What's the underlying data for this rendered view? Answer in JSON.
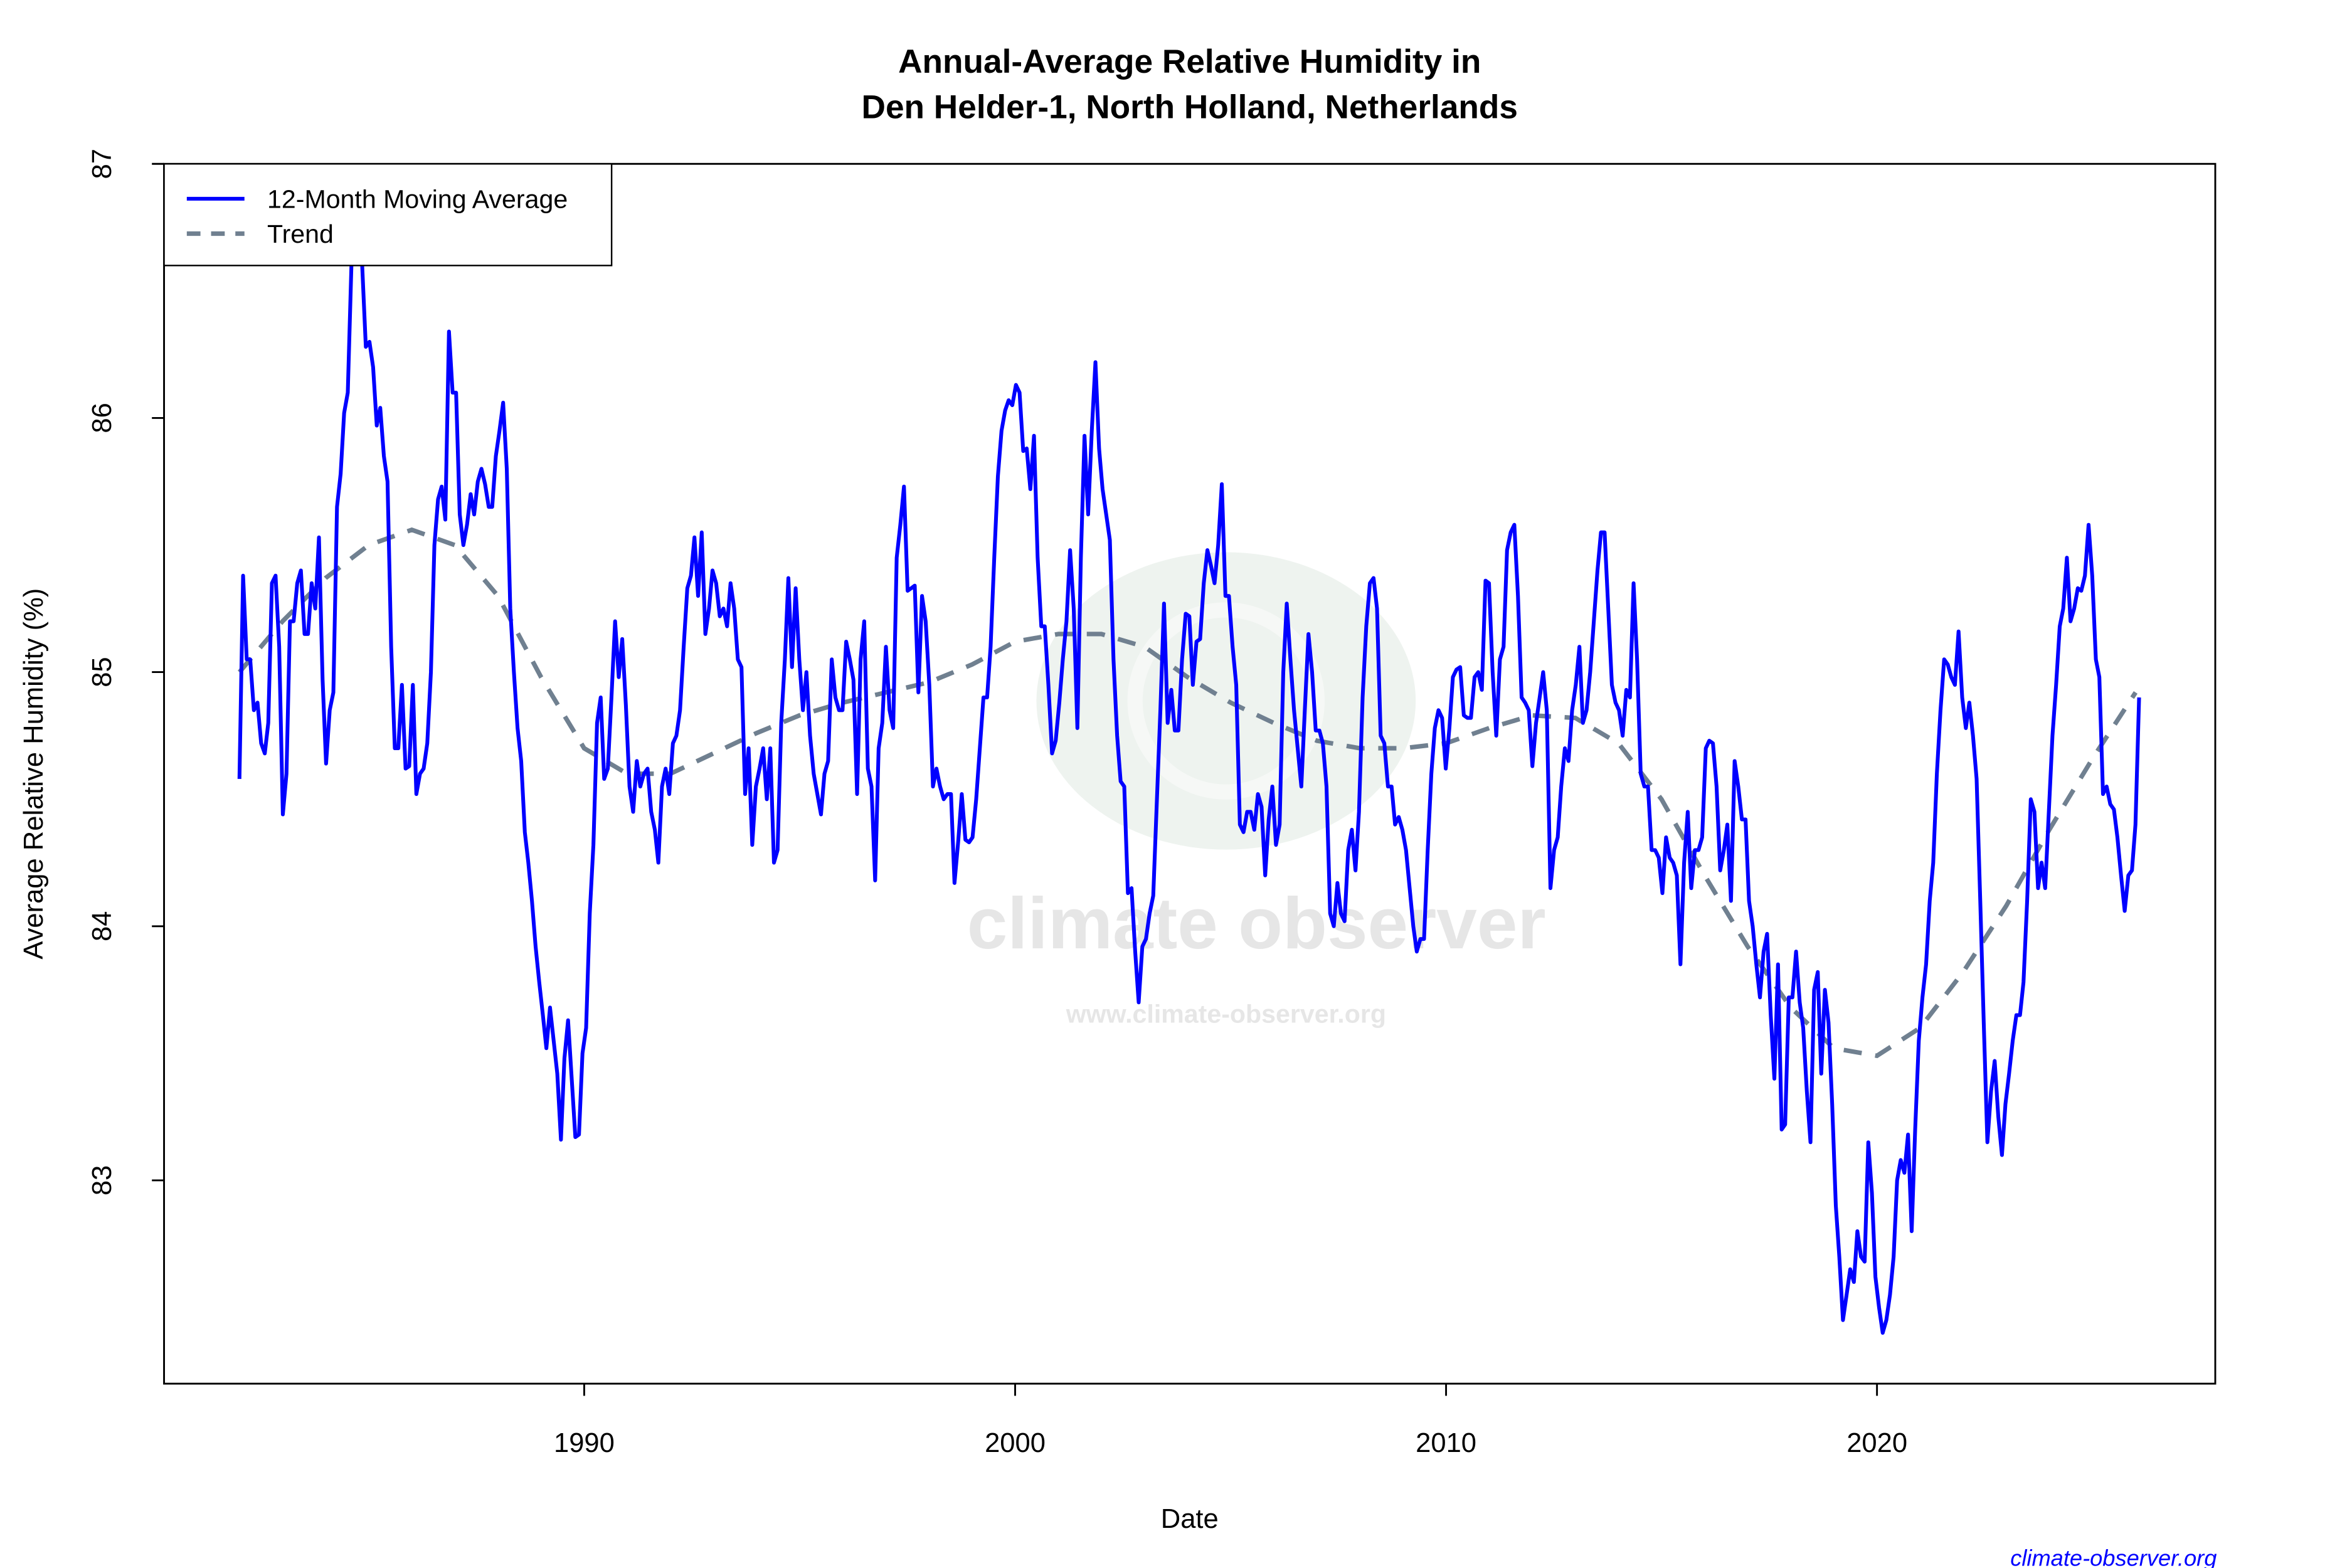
{
  "chart_data": {
    "type": "line",
    "title": "Annual-Average Relative Humidity in",
    "subtitle": "Den Helder-1, North Holland, Netherlands",
    "xlabel": "Date",
    "ylabel": "Average Relative Humidity (%)",
    "xlim": [
      1980.25,
      2027.85
    ],
    "ylim": [
      82.2,
      87.0
    ],
    "x_ticks": [
      "1990",
      "2000",
      "2010",
      "2020"
    ],
    "y_ticks": [
      "83",
      "84",
      "85",
      "86",
      "87"
    ],
    "grid": false,
    "legend_placement": "top-left",
    "series": [
      {
        "name": "12-Month Moving Average",
        "color": "#0000ff",
        "style": "solid",
        "date_range": [
          "1982-01",
          "2026-02"
        ],
        "values": [
          84.58,
          85.38,
          85.05,
          85.05,
          84.85,
          84.88,
          84.72,
          84.68,
          84.8,
          85.35,
          85.38,
          85.1,
          84.44,
          84.6,
          85.2,
          85.2,
          85.35,
          85.4,
          85.15,
          85.15,
          85.35,
          85.25,
          85.53,
          84.97,
          84.64,
          84.85,
          84.92,
          85.65,
          85.78,
          86.02,
          86.1,
          86.6,
          87.1,
          87.1,
          86.6,
          86.28,
          86.3,
          86.2,
          85.97,
          86.04,
          85.85,
          85.75,
          85.1,
          84.7,
          84.7,
          84.95,
          84.62,
          84.63,
          84.95,
          84.52,
          84.6,
          84.62,
          84.72,
          85.0,
          85.5,
          85.68,
          85.73,
          85.6,
          86.34,
          86.1,
          86.1,
          85.62,
          85.5,
          85.58,
          85.7,
          85.62,
          85.75,
          85.8,
          85.74,
          85.65,
          85.65,
          85.85,
          85.95,
          86.06,
          85.8,
          85.25,
          85.0,
          84.78,
          84.65,
          84.37,
          84.25,
          84.1,
          83.92,
          83.78,
          83.65,
          83.52,
          83.68,
          83.55,
          83.42,
          83.16,
          83.48,
          83.63,
          83.4,
          83.17,
          83.18,
          83.5,
          83.6,
          84.05,
          84.32,
          84.8,
          84.9,
          84.58,
          84.62,
          84.9,
          85.2,
          84.98,
          85.13,
          84.87,
          84.55,
          84.45,
          84.65,
          84.55,
          84.6,
          84.62,
          84.45,
          84.38,
          84.25,
          84.55,
          84.62,
          84.52,
          84.72,
          84.75,
          84.85,
          85.1,
          85.33,
          85.38,
          85.53,
          85.3,
          85.55,
          85.15,
          85.25,
          85.4,
          85.35,
          85.22,
          85.25,
          85.18,
          85.35,
          85.25,
          85.05,
          85.02,
          84.52,
          84.7,
          84.32,
          84.55,
          84.62,
          84.7,
          84.5,
          84.7,
          84.25,
          84.3,
          84.8,
          85.05,
          85.37,
          85.02,
          85.33,
          85.05,
          84.85,
          85.0,
          84.75,
          84.6,
          84.52,
          84.44,
          84.6,
          84.65,
          85.05,
          84.9,
          84.85,
          84.85,
          85.12,
          85.05,
          84.97,
          84.52,
          85.05,
          85.2,
          84.62,
          84.55,
          84.18,
          84.7,
          84.8,
          85.1,
          84.85,
          84.78,
          85.45,
          85.58,
          85.73,
          85.32,
          85.33,
          85.34,
          84.92,
          85.3,
          85.2,
          84.95,
          84.55,
          84.62,
          84.55,
          84.5,
          84.52,
          84.52,
          84.17,
          84.33,
          84.52,
          84.34,
          84.33,
          84.35,
          84.5,
          84.7,
          84.9,
          84.9,
          85.1,
          85.45,
          85.77,
          85.95,
          86.03,
          86.07,
          86.05,
          86.13,
          86.1,
          85.87,
          85.88,
          85.72,
          85.93,
          85.45,
          85.18,
          85.18,
          84.95,
          84.68,
          84.73,
          84.88,
          85.05,
          85.2,
          85.48,
          85.25,
          84.78,
          85.45,
          85.93,
          85.62,
          85.95,
          86.22,
          85.88,
          85.72,
          85.62,
          85.52,
          85.05,
          84.75,
          84.57,
          84.55,
          84.13,
          84.15,
          83.9,
          83.7,
          83.92,
          83.95,
          84.05,
          84.12,
          84.48,
          84.85,
          85.27,
          84.8,
          84.93,
          84.77,
          84.77,
          85.05,
          85.23,
          85.22,
          84.95,
          85.12,
          85.13,
          85.35,
          85.48,
          85.42,
          85.35,
          85.5,
          85.74,
          85.3,
          85.3,
          85.1,
          84.95,
          84.4,
          84.37,
          84.45,
          84.45,
          84.38,
          84.52,
          84.47,
          84.2,
          84.42,
          84.55,
          84.32,
          84.4,
          85.0,
          85.27,
          85.05,
          84.85,
          84.7,
          84.55,
          84.85,
          85.15,
          85.0,
          84.77,
          84.77,
          84.72,
          84.55,
          84.05,
          84.0,
          84.17,
          84.05,
          84.02,
          84.3,
          84.38,
          84.22,
          84.45,
          84.9,
          85.18,
          85.35,
          85.37,
          85.25,
          84.75,
          84.72,
          84.55,
          84.55,
          84.4,
          84.43,
          84.38,
          84.3,
          84.15,
          84.0,
          83.9,
          83.95,
          83.95,
          84.3,
          84.6,
          84.78,
          84.85,
          84.82,
          84.62,
          84.78,
          84.98,
          85.01,
          85.02,
          84.83,
          84.82,
          84.82,
          84.98,
          85.0,
          84.93,
          85.36,
          85.35,
          85.0,
          84.75,
          85.05,
          85.1,
          85.48,
          85.55,
          85.58,
          85.3,
          84.9,
          84.88,
          84.85,
          84.63,
          84.8,
          84.9,
          85.0,
          84.85,
          84.15,
          84.3,
          84.35,
          84.55,
          84.7,
          84.65,
          84.85,
          84.95,
          85.1,
          84.8,
          84.85,
          85.0,
          85.2,
          85.4,
          85.55,
          85.55,
          85.25,
          84.95,
          84.88,
          84.85,
          84.75,
          84.93,
          84.9,
          85.35,
          85.05,
          84.6,
          84.55,
          84.55,
          84.3,
          84.3,
          84.27,
          84.13,
          84.35,
          84.27,
          84.25,
          84.2,
          83.85,
          84.25,
          84.45,
          84.15,
          84.3,
          84.3,
          84.35,
          84.7,
          84.73,
          84.72,
          84.55,
          84.22,
          84.3,
          84.4,
          84.1,
          84.65,
          84.55,
          84.42,
          84.42,
          84.1,
          84.0,
          83.85,
          83.72,
          83.9,
          83.97,
          83.65,
          83.4,
          83.85,
          83.2,
          83.22,
          83.72,
          83.72,
          83.9,
          83.7,
          83.6,
          83.35,
          83.15,
          83.75,
          83.82,
          83.42,
          83.75,
          83.62,
          83.3,
          82.9,
          82.7,
          82.45,
          82.55,
          82.65,
          82.6,
          82.8,
          82.7,
          82.68,
          83.15,
          82.95,
          82.62,
          82.5,
          82.4,
          82.45,
          82.55,
          82.7,
          83.0,
          83.08,
          83.03,
          83.18,
          82.8,
          83.2,
          83.55,
          83.72,
          83.85,
          84.1,
          84.25,
          84.6,
          84.85,
          85.05,
          85.03,
          84.98,
          84.95,
          85.16,
          84.9,
          84.78,
          84.88,
          84.75,
          84.58,
          84.1,
          83.6,
          83.15,
          83.35,
          83.47,
          83.25,
          83.1,
          83.3,
          83.42,
          83.55,
          83.65,
          83.65,
          83.78,
          84.1,
          84.5,
          84.45,
          84.15,
          84.25,
          84.15,
          84.45,
          84.75,
          84.95,
          85.18,
          85.25,
          85.45,
          85.2,
          85.25,
          85.33,
          85.32,
          85.38,
          85.58,
          85.38,
          85.05,
          84.98,
          84.52,
          84.55,
          84.48,
          84.46,
          84.35,
          84.2,
          84.06,
          84.2,
          84.22,
          84.4,
          84.9
        ]
      },
      {
        "name": "Trend",
        "color": "#708090",
        "style": "dashed",
        "x": [
          1982,
          1983,
          1984,
          1985,
          1986,
          1987,
          1988,
          1989,
          1990,
          1991,
          1992,
          1993,
          1994,
          1995,
          1996,
          1997,
          1998,
          1999,
          2000,
          2001,
          2002,
          2003,
          2004,
          2005,
          2006,
          2007,
          2008,
          2009,
          2010,
          2011,
          2012,
          2013,
          2014,
          2015,
          2016,
          2017,
          2018,
          2019,
          2020,
          2021,
          2022,
          2023,
          2024,
          2025,
          2026
        ],
        "values": [
          85.0,
          85.2,
          85.37,
          85.5,
          85.56,
          85.5,
          85.3,
          84.98,
          84.7,
          84.6,
          84.6,
          84.68,
          84.76,
          84.83,
          84.88,
          84.92,
          84.96,
          85.03,
          85.12,
          85.15,
          85.15,
          85.1,
          84.98,
          84.88,
          84.8,
          84.73,
          84.7,
          84.7,
          84.72,
          84.78,
          84.83,
          84.82,
          84.72,
          84.5,
          84.2,
          83.92,
          83.68,
          83.52,
          83.49,
          83.6,
          83.82,
          84.08,
          84.38,
          84.66,
          84.92
        ]
      }
    ]
  },
  "watermark": {
    "text": "climate observer",
    "url": "www.climate-observer.org"
  },
  "footer": {
    "credit": "climate-observer.org",
    "credit_color": "#0000ff"
  }
}
